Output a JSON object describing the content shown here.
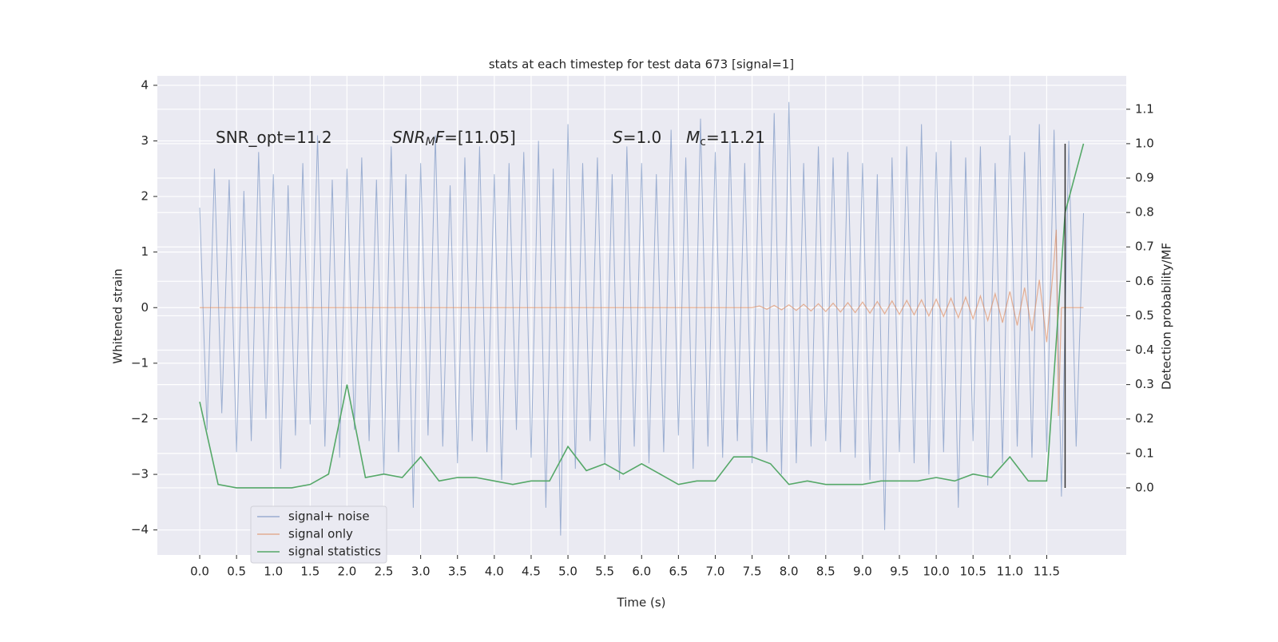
{
  "chart_data": {
    "type": "line",
    "title": "stats at each timestep for test data 673 [signal=1]",
    "x_label": "Time (s)",
    "y_label": "Whitened strain",
    "y2_label": "Detection probability/MF",
    "xlim": [
      -0.575,
      12.58
    ],
    "ylim": [
      -4.45,
      4.17
    ],
    "y2lim": [
      -0.195,
      1.197
    ],
    "xticks": [
      {
        "value": 0,
        "label": "0.0"
      },
      0.5,
      {
        "value": 1,
        "label": "1.0"
      },
      1.5,
      {
        "value": 2,
        "label": "2.0"
      },
      2.5,
      {
        "value": 3,
        "label": "3.0"
      },
      3.5,
      {
        "value": 4,
        "label": "4.0"
      },
      4.5,
      {
        "value": 5,
        "label": "5.0"
      },
      5.5,
      {
        "value": 6,
        "label": "6.0"
      },
      6.5,
      {
        "value": 7,
        "label": "7.0"
      },
      7.5,
      {
        "value": 8,
        "label": "8.0"
      },
      8.5,
      {
        "value": 9,
        "label": "9.0"
      },
      9.5,
      {
        "value": 10,
        "label": "10.0"
      },
      10.5,
      {
        "value": 11,
        "label": "11.0"
      },
      11.5
    ],
    "yticks": [
      {
        "value": -4,
        "label": "−4"
      },
      {
        "value": -3,
        "label": "−3"
      },
      {
        "value": -2,
        "label": "−2"
      },
      {
        "value": -1,
        "label": "−1"
      },
      0,
      1,
      2,
      3,
      4
    ],
    "y2ticks": [
      {
        "value": 0,
        "label": "0.0"
      },
      0.1,
      0.2,
      0.3,
      0.4,
      0.5,
      0.6,
      0.7,
      0.8,
      0.9,
      {
        "value": 1,
        "label": "1.0"
      },
      1.1
    ],
    "grid": true,
    "legend": "lower left",
    "annotations": [
      [
        "SNR_opt=11.2"
      ],
      [
        "SNR",
        "M",
        "F",
        "=[11.05]"
      ],
      [
        "S",
        "=1.0"
      ],
      [
        "M",
        "c",
        "=11.21"
      ]
    ],
    "vline": 11.75,
    "vline_color": "#333333",
    "series": [
      {
        "name": "signal+ noise",
        "color": "#4c72b0",
        "x": [
          0,
          0.1,
          0.2,
          0.3,
          0.4,
          0.5,
          0.6,
          0.7,
          0.8,
          0.9,
          1,
          1.1,
          1.2,
          1.3,
          1.4,
          1.5,
          1.6,
          1.7,
          1.8,
          1.9,
          2,
          2.1,
          2.2,
          2.3,
          2.4,
          2.5,
          2.6,
          2.7,
          2.8,
          2.9,
          3,
          3.1,
          3.2,
          3.3,
          3.4,
          3.5,
          3.6,
          3.7,
          3.8,
          3.9,
          4,
          4.1,
          4.2,
          4.3,
          4.4,
          4.5,
          4.6,
          4.7,
          4.8,
          4.9,
          5,
          5.1,
          5.2,
          5.3,
          5.4,
          5.5,
          5.6,
          5.7,
          5.8,
          5.9,
          6,
          6.1,
          6.2,
          6.3,
          6.4,
          6.5,
          6.6,
          6.7,
          6.8,
          6.9,
          7,
          7.1,
          7.2,
          7.3,
          7.4,
          7.5,
          7.6,
          7.7,
          7.8,
          7.9,
          8,
          8.1,
          8.2,
          8.3,
          8.4,
          8.5,
          8.6,
          8.7,
          8.8,
          8.9,
          9,
          9.1,
          9.2,
          9.3,
          9.4,
          9.5,
          9.6,
          9.7,
          9.8,
          9.9,
          10,
          10.1,
          10.2,
          10.3,
          10.4,
          10.5,
          10.6,
          10.7,
          10.8,
          10.9,
          11,
          11.1,
          11.2,
          11.3,
          11.4,
          11.5,
          11.6,
          11.7,
          11.8,
          11.9,
          12
        ],
        "values": [
          1.8,
          -2.2,
          2.5,
          -1.9,
          2.3,
          -2.6,
          2.1,
          -2.4,
          2.8,
          -2.0,
          2.4,
          -2.9,
          2.2,
          -2.3,
          2.6,
          -2.1,
          3.1,
          -2.5,
          2.3,
          -2.7,
          2.5,
          -2.2,
          2.7,
          -2.4,
          2.3,
          -3.0,
          2.9,
          -2.6,
          2.4,
          -3.6,
          2.6,
          -2.3,
          3.1,
          -2.5,
          2.2,
          -2.8,
          2.7,
          -2.4,
          2.9,
          -2.6,
          2.4,
          -3.1,
          2.6,
          -2.2,
          2.8,
          -2.7,
          3.0,
          -3.6,
          2.5,
          -4.1,
          3.3,
          -2.9,
          2.6,
          -2.4,
          2.7,
          -2.8,
          2.4,
          -3.1,
          2.9,
          -2.5,
          2.6,
          -2.8,
          2.4,
          -2.6,
          3.2,
          -2.3,
          2.7,
          -2.9,
          3.4,
          -2.5,
          2.8,
          -2.7,
          3.0,
          -2.4,
          2.6,
          -2.8,
          3.1,
          -2.6,
          3.5,
          -3.0,
          3.7,
          -2.8,
          2.6,
          -2.5,
          2.9,
          -2.4,
          2.7,
          -2.6,
          2.8,
          -2.7,
          2.6,
          -3.1,
          2.4,
          -4.0,
          2.7,
          -2.6,
          2.9,
          -2.8,
          3.3,
          -3.0,
          2.8,
          -2.6,
          3.0,
          -3.6,
          2.7,
          -2.4,
          2.9,
          -3.2,
          2.6,
          -2.8,
          3.1,
          -2.5,
          2.8,
          -2.7,
          3.3,
          -2.6,
          3.2,
          -3.4,
          3.0,
          -2.5,
          1.7
        ]
      },
      {
        "name": "signal only",
        "color": "#dd8452",
        "x": [
          0,
          7.5,
          7.6,
          7.7,
          7.8,
          7.9,
          8,
          8.1,
          8.2,
          8.3,
          8.4,
          8.5,
          8.6,
          8.7,
          8.8,
          8.9,
          9,
          9.1,
          9.2,
          9.3,
          9.4,
          9.5,
          9.6,
          9.7,
          9.8,
          9.9,
          10,
          10.1,
          10.2,
          10.3,
          10.4,
          10.5,
          10.6,
          10.7,
          10.8,
          10.9,
          11,
          11.1,
          11.2,
          11.3,
          11.4,
          11.5,
          11.6,
          11.63,
          11.66,
          11.7,
          12
        ],
        "values": [
          0,
          0,
          0.03,
          -0.03,
          0.04,
          -0.04,
          0.05,
          -0.05,
          0.06,
          -0.06,
          0.07,
          -0.07,
          0.08,
          -0.08,
          0.09,
          -0.09,
          0.1,
          -0.1,
          0.11,
          -0.11,
          0.12,
          -0.12,
          0.13,
          -0.13,
          0.14,
          -0.15,
          0.15,
          -0.16,
          0.17,
          -0.18,
          0.19,
          -0.2,
          0.21,
          -0.23,
          0.25,
          -0.27,
          0.29,
          -0.32,
          0.36,
          -0.42,
          0.5,
          -0.62,
          0.85,
          1.4,
          -1.95,
          0,
          0
        ]
      },
      {
        "name": "signal statistics",
        "color": "#55a868",
        "axis": "y2",
        "x": [
          0,
          0.25,
          0.5,
          0.75,
          1,
          1.25,
          1.5,
          1.75,
          2,
          2.25,
          2.5,
          2.75,
          3,
          3.25,
          3.5,
          3.75,
          4,
          4.25,
          4.5,
          4.75,
          5,
          5.25,
          5.5,
          5.75,
          6,
          6.25,
          6.5,
          6.75,
          7,
          7.25,
          7.5,
          7.75,
          8,
          8.25,
          8.5,
          8.75,
          9,
          9.25,
          9.5,
          9.75,
          10,
          10.25,
          10.5,
          10.75,
          11,
          11.25,
          11.5,
          11.75,
          12
        ],
        "values": [
          0.25,
          0.01,
          0.0,
          0.0,
          0.0,
          0.0,
          0.01,
          0.04,
          0.3,
          0.03,
          0.04,
          0.03,
          0.09,
          0.02,
          0.03,
          0.03,
          0.02,
          0.01,
          0.02,
          0.02,
          0.12,
          0.05,
          0.07,
          0.04,
          0.07,
          0.04,
          0.01,
          0.02,
          0.02,
          0.09,
          0.09,
          0.07,
          0.01,
          0.02,
          0.01,
          0.01,
          0.01,
          0.02,
          0.02,
          0.02,
          0.03,
          0.02,
          0.04,
          0.03,
          0.09,
          0.02,
          0.02,
          0.8,
          1.0
        ]
      }
    ]
  }
}
